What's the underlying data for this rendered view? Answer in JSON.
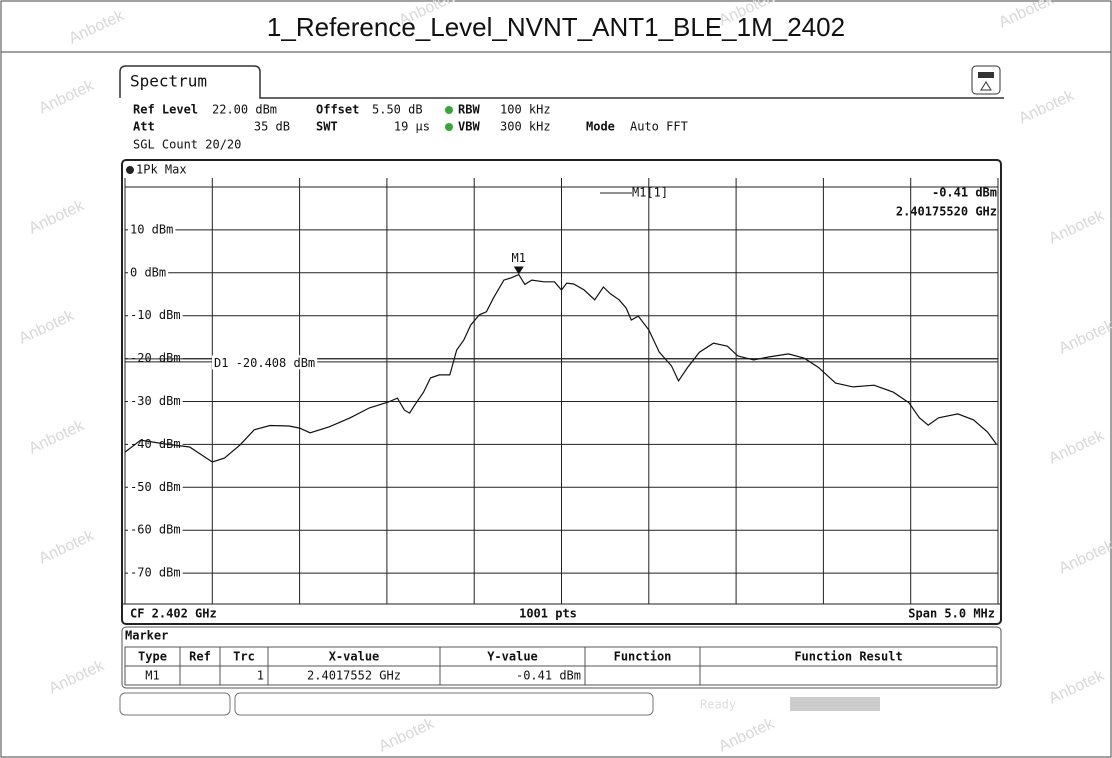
{
  "title": "1_Reference_Level_NVNT_ANT1_BLE_1M_2402",
  "watermark": "Anbotek",
  "tab": "Spectrum",
  "settings": {
    "row1": [
      [
        "Ref Level",
        "22.00 dBm"
      ],
      [
        "Offset",
        "5.50 dB"
      ],
      [
        "RBW",
        "100 kHz"
      ]
    ],
    "row2": [
      [
        "Att",
        "35 dB"
      ],
      [
        "SWT",
        "19 µs"
      ],
      [
        "VBW",
        "300 kHz"
      ],
      [
        "Mode",
        "Auto FFT"
      ]
    ],
    "count": "SGL Count 20/20"
  },
  "trace_label": "1Pk Max",
  "readout": {
    "name": "M1[1]",
    "level": "-0.41 dBm",
    "freq": "2.40175520 GHz"
  },
  "plot": {
    "xlim": [
      2.3995,
      2.4045
    ],
    "ylim": [
      -80,
      20
    ],
    "yticks": [
      {
        "value": 10,
        "label": "10 dBm"
      },
      {
        "value": 0,
        "label": "0 dBm"
      },
      {
        "value": -10,
        "label": "-10 dBm"
      },
      {
        "value": -20,
        "label": "-20 dBm"
      },
      {
        "value": -30,
        "label": "-30 dBm"
      },
      {
        "value": -40,
        "label": "-40 dBm"
      },
      {
        "value": -50,
        "label": "-50 dBm"
      },
      {
        "value": -60,
        "label": "-60 dBm"
      },
      {
        "value": -70,
        "label": "-70 dBm"
      }
    ],
    "display_line": {
      "value": -20.408,
      "label": "D1 -20.408 dBm"
    },
    "marker": {
      "label": "M1",
      "x": 2.4017552,
      "y": -0.41
    },
    "trace": {
      "x": [
        2.3995,
        2.39959,
        2.39973,
        2.39987,
        2.4,
        2.40007,
        2.40016,
        2.40024,
        2.40033,
        2.40044,
        2.4005,
        2.40056,
        2.40067,
        2.40079,
        2.4009,
        2.40101,
        2.40106,
        2.4011,
        2.40113,
        2.40116,
        2.40121,
        2.40125,
        2.4013,
        2.40136,
        2.4014,
        2.40144,
        2.40148,
        2.40153,
        2.40157,
        2.40161,
        2.40167,
        2.40171,
        2.4017552,
        2.40179,
        2.40183,
        2.4019,
        2.40196,
        2.402,
        2.40203,
        2.40207,
        2.40213,
        2.40219,
        2.40224,
        2.40228,
        2.40233,
        2.40237,
        2.4024,
        2.40244,
        2.4025,
        2.40256,
        2.40263,
        2.40267,
        2.40272,
        2.40279,
        2.40287,
        2.40295,
        2.40301,
        2.4031,
        2.40319,
        2.4033,
        2.40339,
        2.40347,
        2.40357,
        2.40367,
        2.40379,
        2.4039,
        2.40399,
        2.40405,
        2.4041,
        2.40416,
        2.40427,
        2.40436,
        2.40444,
        2.40449
      ],
      "y": [
        -41.8,
        -39.0,
        -39.9,
        -40.6,
        -44.1,
        -43.2,
        -40.1,
        -36.6,
        -35.6,
        -35.7,
        -36.2,
        -37.3,
        -35.9,
        -33.8,
        -31.5,
        -30.1,
        -29.2,
        -32.0,
        -32.7,
        -30.8,
        -27.8,
        -24.5,
        -23.8,
        -23.8,
        -18.0,
        -15.7,
        -12.2,
        -9.8,
        -9.1,
        -5.9,
        -1.7,
        -1.2,
        -0.41,
        -2.7,
        -1.7,
        -2.1,
        -2.1,
        -4.0,
        -2.4,
        -2.6,
        -4.0,
        -6.3,
        -3.3,
        -4.9,
        -6.3,
        -8.2,
        -11.0,
        -10.1,
        -13.3,
        -18.5,
        -21.7,
        -25.2,
        -22.2,
        -18.5,
        -16.4,
        -17.1,
        -19.4,
        -20.3,
        -19.6,
        -18.9,
        -19.9,
        -22.0,
        -25.7,
        -26.6,
        -26.2,
        -27.8,
        -30.3,
        -33.8,
        -35.5,
        -33.8,
        -32.9,
        -34.3,
        -37.1,
        -39.9
      ]
    }
  },
  "footer": {
    "cf": "CF 2.402 GHz",
    "pts": "1001 pts",
    "span": "Span 5.0 MHz"
  },
  "marker_table": {
    "title": "Marker",
    "headers": [
      "Type",
      "Ref",
      "Trc",
      "X-value",
      "Y-value",
      "Function",
      "Function Result"
    ],
    "rows": [
      [
        "M1",
        "",
        "1",
        "2.4017552 GHz",
        "-0.41 dBm",
        "",
        ""
      ]
    ]
  },
  "status": "Ready"
}
